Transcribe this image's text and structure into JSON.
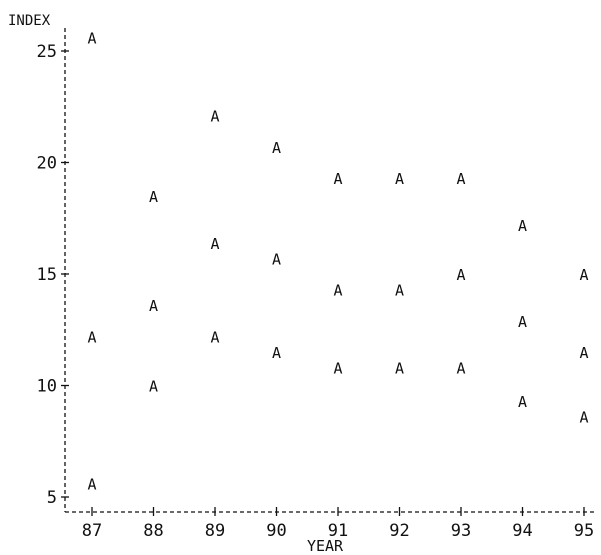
{
  "chart_data": {
    "type": "scatter",
    "xlabel": "YEAR",
    "ylabel": "INDEX",
    "marker": "A",
    "grid": false,
    "xlim": [
      87,
      95
    ],
    "ylim": [
      4.5,
      26.5
    ],
    "x_ticks": [
      "87",
      "88",
      "89",
      "90",
      "91",
      "92",
      "93",
      "94",
      "95"
    ],
    "y_ticks": [
      "5",
      "10",
      "15",
      "20",
      "25"
    ],
    "series": [
      {
        "points": [
          {
            "x": 87,
            "y": 25.6
          },
          {
            "x": 87,
            "y": 12.2
          },
          {
            "x": 87,
            "y": 5.6
          },
          {
            "x": 88,
            "y": 18.5
          },
          {
            "x": 88,
            "y": 13.6
          },
          {
            "x": 88,
            "y": 10.0
          },
          {
            "x": 89,
            "y": 22.1
          },
          {
            "x": 89,
            "y": 16.4
          },
          {
            "x": 89,
            "y": 12.2
          },
          {
            "x": 90,
            "y": 20.7
          },
          {
            "x": 90,
            "y": 15.7
          },
          {
            "x": 90,
            "y": 11.5
          },
          {
            "x": 91,
            "y": 19.3
          },
          {
            "x": 91,
            "y": 14.3
          },
          {
            "x": 91,
            "y": 10.8
          },
          {
            "x": 92,
            "y": 19.3
          },
          {
            "x": 92,
            "y": 14.3
          },
          {
            "x": 92,
            "y": 10.8
          },
          {
            "x": 93,
            "y": 19.3
          },
          {
            "x": 93,
            "y": 15.0
          },
          {
            "x": 93,
            "y": 10.8
          },
          {
            "x": 94,
            "y": 17.2
          },
          {
            "x": 94,
            "y": 12.9
          },
          {
            "x": 94,
            "y": 9.3
          },
          {
            "x": 95,
            "y": 15.0
          },
          {
            "x": 95,
            "y": 11.5
          },
          {
            "x": 95,
            "y": 8.6
          }
        ]
      }
    ]
  }
}
